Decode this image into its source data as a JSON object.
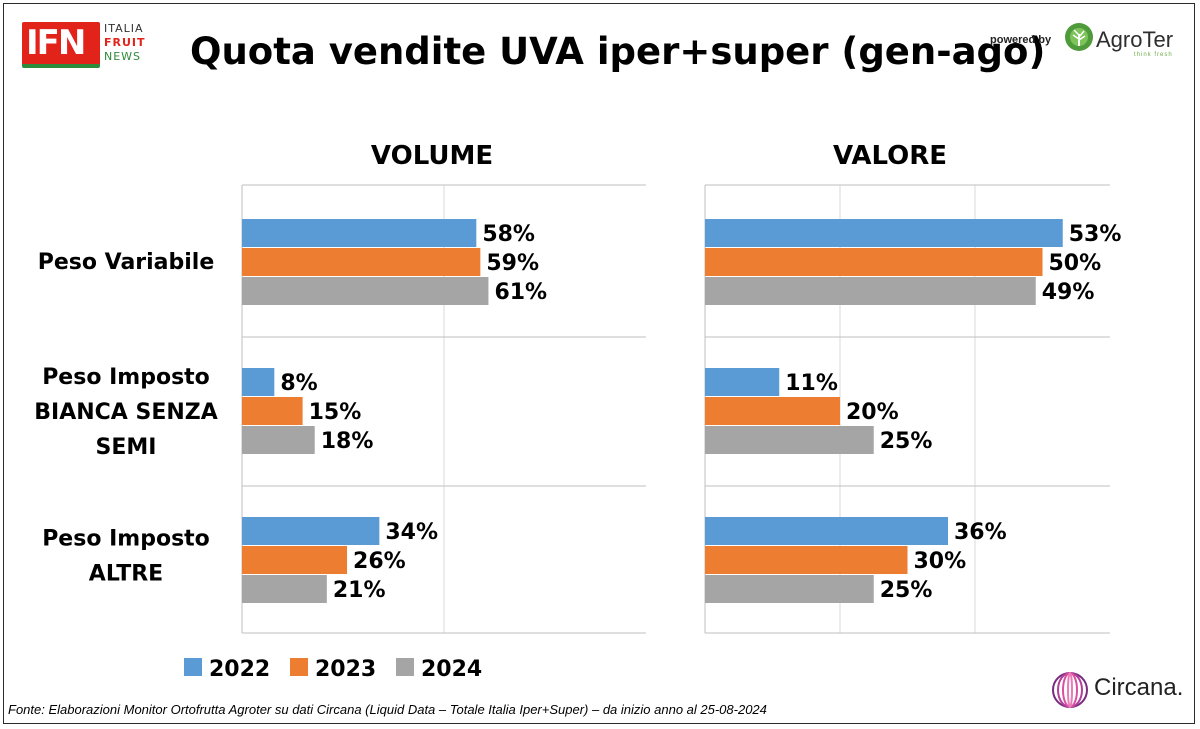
{
  "header": {
    "logo_left": {
      "letters": "IFN",
      "line1": "ITALIA",
      "line2": "FRUIT",
      "line3": "NEWS"
    },
    "title": "Quota vendite UVA iper+super (gen-ago)",
    "powered_by": "powered by",
    "logo_right": {
      "name": "AgroTer",
      "tagline": "think fresh"
    }
  },
  "footer": {
    "source": "Fonte: Elaborazioni Monitor Ortofrutta Agroter su dati Circana (Liquid Data – Totale Italia Iper+Super) –  da inizio anno al 25-08-2024",
    "logo": {
      "name": "Circana."
    }
  },
  "colors": {
    "2022": "#5b9bd5",
    "2023": "#ed7d31",
    "2024": "#a5a5a5"
  },
  "chart_data": [
    {
      "type": "bar",
      "orientation": "horizontal",
      "title": "VOLUME",
      "categories": [
        "Peso Variabile",
        "Peso Imposto BIANCA SENZA SEMI",
        "Peso Imposto ALTRE"
      ],
      "series": [
        {
          "name": "2022",
          "values": [
            58,
            8,
            34
          ],
          "labels": [
            "58%",
            "8%",
            "34%"
          ]
        },
        {
          "name": "2023",
          "values": [
            59,
            15,
            26
          ],
          "labels": [
            "59%",
            "15%",
            "26%"
          ]
        },
        {
          "name": "2024",
          "values": [
            61,
            18,
            21
          ],
          "labels": [
            "61%",
            "18%",
            "21%"
          ]
        }
      ],
      "xlim": [
        0,
        100
      ],
      "grid": true,
      "legend": "bottom"
    },
    {
      "type": "bar",
      "orientation": "horizontal",
      "title": "VALORE",
      "categories": [
        "Peso Variabile",
        "Peso Imposto BIANCA SENZA SEMI",
        "Peso Imposto ALTRE"
      ],
      "series": [
        {
          "name": "2022",
          "values": [
            53,
            11,
            36
          ],
          "labels": [
            "53%",
            "11%",
            "36%"
          ]
        },
        {
          "name": "2023",
          "values": [
            50,
            20,
            30
          ],
          "labels": [
            "50%",
            "20%",
            "30%"
          ]
        },
        {
          "name": "2024",
          "values": [
            49,
            25,
            25
          ],
          "labels": [
            "49%",
            "25%",
            "25%"
          ]
        }
      ],
      "xlim": [
        0,
        60
      ],
      "grid": true,
      "legend": "none"
    }
  ],
  "category_labels": [
    [
      "Peso Variabile"
    ],
    [
      "Peso Imposto",
      "BIANCA SENZA",
      "SEMI"
    ],
    [
      "Peso Imposto",
      "ALTRE"
    ]
  ],
  "legend": [
    {
      "label": "2022",
      "color": "#5b9bd5"
    },
    {
      "label": "2023",
      "color": "#ed7d31"
    },
    {
      "label": "2024",
      "color": "#a5a5a5"
    }
  ]
}
